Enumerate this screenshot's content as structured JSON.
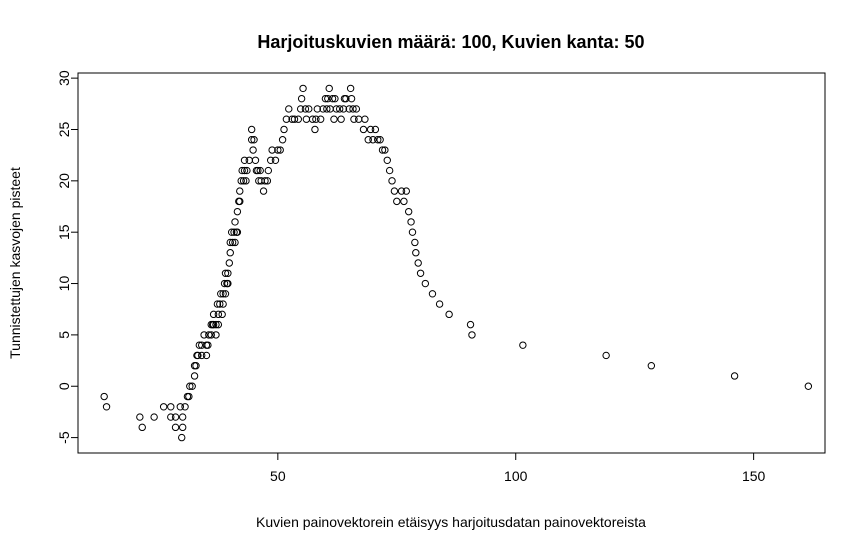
{
  "chart_data": {
    "type": "scatter",
    "title": "Harjoituskuvien määrä: 100, Kuvien kanta: 50",
    "xlabel": "Kuvien painovektorein etäisyys harjoitusdatan painovektoreista",
    "ylabel": "Tunnistettujen kasvojen pisteet",
    "xlim": [
      8,
      165
    ],
    "ylim": [
      -6.5,
      30.5
    ],
    "xticks": [
      50,
      100,
      150
    ],
    "yticks": [
      -5,
      0,
      5,
      10,
      15,
      20,
      25,
      30
    ],
    "grid": false,
    "legend": "none",
    "marker": "open-circle",
    "color": "#000000",
    "points": [
      [
        13.5,
        -1
      ],
      [
        14,
        -2
      ],
      [
        21,
        -3
      ],
      [
        21.5,
        -4
      ],
      [
        24,
        -3
      ],
      [
        26,
        -2
      ],
      [
        27.5,
        -2
      ],
      [
        27.5,
        -3
      ],
      [
        28.5,
        -3
      ],
      [
        28.5,
        -4
      ],
      [
        29.5,
        -2
      ],
      [
        30,
        -3
      ],
      [
        30,
        -4
      ],
      [
        29.8,
        -5
      ],
      [
        30.5,
        -2
      ],
      [
        31,
        -1
      ],
      [
        31.3,
        -1
      ],
      [
        31.5,
        0
      ],
      [
        32,
        0
      ],
      [
        32.5,
        1
      ],
      [
        32.5,
        2
      ],
      [
        32.8,
        2
      ],
      [
        33,
        3
      ],
      [
        33.2,
        3
      ],
      [
        33.5,
        4
      ],
      [
        34,
        4
      ],
      [
        34,
        3
      ],
      [
        34.5,
        5
      ],
      [
        35,
        4
      ],
      [
        35,
        3
      ],
      [
        35.3,
        4
      ],
      [
        35.5,
        5
      ],
      [
        36,
        6
      ],
      [
        36,
        5
      ],
      [
        36.3,
        6
      ],
      [
        36.5,
        7
      ],
      [
        36.5,
        6
      ],
      [
        37,
        6
      ],
      [
        37,
        5
      ],
      [
        37.3,
        8
      ],
      [
        37.5,
        7
      ],
      [
        37.5,
        6
      ],
      [
        37.8,
        8
      ],
      [
        38,
        9
      ],
      [
        38.3,
        7
      ],
      [
        38.5,
        9
      ],
      [
        38.5,
        8
      ],
      [
        38.8,
        10
      ],
      [
        39,
        11
      ],
      [
        39,
        9
      ],
      [
        39.3,
        10
      ],
      [
        39.5,
        10
      ],
      [
        39.5,
        11
      ],
      [
        39.8,
        12
      ],
      [
        40,
        13
      ],
      [
        40,
        14
      ],
      [
        40.3,
        15
      ],
      [
        40.5,
        14
      ],
      [
        40.8,
        15
      ],
      [
        41,
        16
      ],
      [
        41,
        14
      ],
      [
        41.3,
        15
      ],
      [
        41.5,
        15
      ],
      [
        41.5,
        17
      ],
      [
        41.8,
        18
      ],
      [
        42,
        18
      ],
      [
        42,
        19
      ],
      [
        42.3,
        20
      ],
      [
        42.5,
        21
      ],
      [
        42.8,
        20
      ],
      [
        43,
        21
      ],
      [
        43,
        22
      ],
      [
        43.3,
        20
      ],
      [
        43.5,
        21
      ],
      [
        44,
        22
      ],
      [
        44.5,
        25
      ],
      [
        44.5,
        24
      ],
      [
        44.8,
        23
      ],
      [
        45,
        24
      ],
      [
        45.3,
        22
      ],
      [
        45.5,
        21
      ],
      [
        45.8,
        21
      ],
      [
        46,
        20
      ],
      [
        46.3,
        21
      ],
      [
        46.5,
        20
      ],
      [
        47,
        19
      ],
      [
        47.3,
        20
      ],
      [
        47.8,
        20
      ],
      [
        48,
        21
      ],
      [
        48.5,
        22
      ],
      [
        48.8,
        23
      ],
      [
        49.5,
        22
      ],
      [
        50,
        23
      ],
      [
        50.5,
        23
      ],
      [
        51,
        24
      ],
      [
        51.3,
        25
      ],
      [
        51.8,
        26
      ],
      [
        52.3,
        27
      ],
      [
        53,
        26
      ],
      [
        53.5,
        26
      ],
      [
        54.3,
        26
      ],
      [
        54.8,
        27
      ],
      [
        55,
        28
      ],
      [
        55.3,
        29
      ],
      [
        55.8,
        27
      ],
      [
        56,
        26
      ],
      [
        56.5,
        27
      ],
      [
        57.3,
        26
      ],
      [
        57.8,
        25
      ],
      [
        58,
        26
      ],
      [
        58.3,
        27
      ],
      [
        59,
        26
      ],
      [
        59.5,
        27
      ],
      [
        60,
        28
      ],
      [
        60.3,
        27
      ],
      [
        60.5,
        28
      ],
      [
        60.8,
        29
      ],
      [
        61,
        27
      ],
      [
        61.5,
        28
      ],
      [
        61.8,
        26
      ],
      [
        62,
        28
      ],
      [
        62.3,
        27
      ],
      [
        63,
        27
      ],
      [
        63.3,
        26
      ],
      [
        63.8,
        27
      ],
      [
        64,
        28
      ],
      [
        64.3,
        28
      ],
      [
        65,
        27
      ],
      [
        65.3,
        29
      ],
      [
        65.5,
        28
      ],
      [
        65.8,
        27
      ],
      [
        66,
        26
      ],
      [
        66.5,
        27
      ],
      [
        67,
        26
      ],
      [
        68,
        25
      ],
      [
        68.3,
        26
      ],
      [
        69,
        24
      ],
      [
        69.5,
        25
      ],
      [
        70,
        24
      ],
      [
        70.5,
        25
      ],
      [
        71,
        24
      ],
      [
        71.5,
        24
      ],
      [
        72,
        23
      ],
      [
        72.5,
        23
      ],
      [
        73,
        22
      ],
      [
        73.5,
        21
      ],
      [
        74,
        20
      ],
      [
        74.5,
        19
      ],
      [
        75,
        18
      ],
      [
        76,
        19
      ],
      [
        76.5,
        18
      ],
      [
        77,
        19
      ],
      [
        77.5,
        17
      ],
      [
        78,
        16
      ],
      [
        78.3,
        15
      ],
      [
        78.8,
        14
      ],
      [
        79,
        13
      ],
      [
        79.5,
        12
      ],
      [
        80,
        11
      ],
      [
        81,
        10
      ],
      [
        82.5,
        9
      ],
      [
        84,
        8
      ],
      [
        86,
        7
      ],
      [
        90.5,
        6
      ],
      [
        90.8,
        5
      ],
      [
        101.5,
        4
      ],
      [
        119,
        3
      ],
      [
        128.5,
        2
      ],
      [
        146,
        1
      ],
      [
        161.5,
        0
      ]
    ]
  }
}
